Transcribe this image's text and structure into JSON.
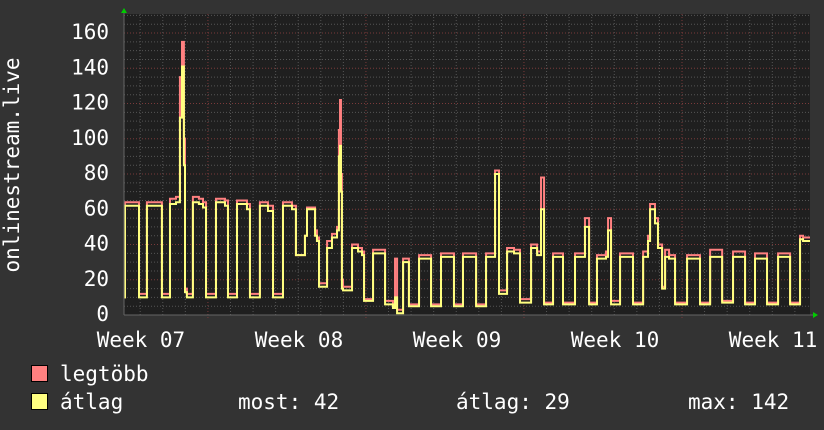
{
  "chart_data": {
    "type": "line",
    "ylabel": "onlinestream.live",
    "xlabel": "",
    "ylim": [
      0,
      170.8
    ],
    "xlim": [
      6.956,
      11.297
    ],
    "x_unit": "ISO week",
    "y_ticks": [
      0,
      20,
      40,
      60,
      80,
      100,
      120,
      140,
      160
    ],
    "y_tick_labels": [
      "0",
      "20",
      "40",
      "60",
      "80",
      "100",
      "120",
      "140",
      "160"
    ],
    "x_ticks": [
      7,
      8,
      9,
      10,
      11
    ],
    "x_tick_labels": [
      "Week 07",
      "Week 08",
      "Week 09",
      "Week 10",
      "Week 11"
    ],
    "grid": true,
    "render": "step",
    "background": "#1f1f1f",
    "series": [
      {
        "name": "legtöbb",
        "color": "#ff8080",
        "key": "max"
      },
      {
        "name": "átlag",
        "color": "#ffff80",
        "key": "avg"
      }
    ],
    "points": [
      [
        6.956,
        10,
        10
      ],
      [
        6.962,
        64,
        62
      ],
      [
        7.051,
        12,
        10
      ],
      [
        7.101,
        64,
        62
      ],
      [
        7.196,
        12,
        10
      ],
      [
        7.247,
        66,
        63
      ],
      [
        7.285,
        67,
        64
      ],
      [
        7.31,
        135,
        112
      ],
      [
        7.323,
        155,
        141
      ],
      [
        7.335,
        100,
        85
      ],
      [
        7.342,
        15,
        13
      ],
      [
        7.354,
        12,
        10
      ],
      [
        7.392,
        67,
        64
      ],
      [
        7.43,
        66,
        63
      ],
      [
        7.456,
        64,
        61
      ],
      [
        7.475,
        12,
        10
      ],
      [
        7.538,
        66,
        64
      ],
      [
        7.595,
        65,
        62
      ],
      [
        7.614,
        12,
        10
      ],
      [
        7.671,
        65,
        63
      ],
      [
        7.734,
        63,
        60
      ],
      [
        7.753,
        12,
        10
      ],
      [
        7.816,
        64,
        62
      ],
      [
        7.867,
        62,
        59
      ],
      [
        7.899,
        12,
        10
      ],
      [
        7.962,
        64,
        62
      ],
      [
        8.019,
        62,
        60
      ],
      [
        8.044,
        34,
        34
      ],
      [
        8.101,
        45,
        45
      ],
      [
        8.114,
        61,
        60
      ],
      [
        8.165,
        48,
        45
      ],
      [
        8.177,
        44,
        42
      ],
      [
        8.19,
        18,
        16
      ],
      [
        8.241,
        42,
        38
      ],
      [
        8.272,
        46,
        44
      ],
      [
        8.304,
        50,
        48
      ],
      [
        8.316,
        105,
        90
      ],
      [
        8.323,
        122,
        96
      ],
      [
        8.329,
        80,
        70
      ],
      [
        8.335,
        20,
        15
      ],
      [
        8.342,
        16,
        14
      ],
      [
        8.399,
        40,
        38
      ],
      [
        8.437,
        38,
        36
      ],
      [
        8.462,
        36,
        34
      ],
      [
        8.475,
        9,
        8
      ],
      [
        8.532,
        37,
        35
      ],
      [
        8.608,
        8,
        6
      ],
      [
        8.658,
        5,
        4
      ],
      [
        8.671,
        32,
        10
      ],
      [
        8.684,
        3,
        1
      ],
      [
        8.722,
        32,
        30
      ],
      [
        8.759,
        6,
        5
      ],
      [
        8.823,
        34,
        32
      ],
      [
        8.899,
        6,
        5
      ],
      [
        8.962,
        35,
        33
      ],
      [
        9.044,
        6,
        5
      ],
      [
        9.101,
        35,
        33
      ],
      [
        9.184,
        6,
        5
      ],
      [
        9.247,
        35,
        33
      ],
      [
        9.304,
        82,
        80
      ],
      [
        9.329,
        14,
        12
      ],
      [
        9.38,
        38,
        36
      ],
      [
        9.424,
        37,
        35
      ],
      [
        9.462,
        9,
        7
      ],
      [
        9.532,
        40,
        38
      ],
      [
        9.57,
        36,
        34
      ],
      [
        9.595,
        78,
        60
      ],
      [
        9.614,
        7,
        6
      ],
      [
        9.671,
        35,
        33
      ],
      [
        9.734,
        7,
        6
      ],
      [
        9.81,
        35,
        33
      ],
      [
        9.873,
        55,
        50
      ],
      [
        9.899,
        7,
        6
      ],
      [
        9.949,
        34,
        32
      ],
      [
        10.006,
        36,
        33
      ],
      [
        10.019,
        55,
        48
      ],
      [
        10.038,
        8,
        6
      ],
      [
        10.095,
        35,
        33
      ],
      [
        10.177,
        7,
        6
      ],
      [
        10.241,
        36,
        33
      ],
      [
        10.272,
        45,
        42
      ],
      [
        10.285,
        63,
        60
      ],
      [
        10.316,
        55,
        52
      ],
      [
        10.335,
        40,
        38
      ],
      [
        10.361,
        16,
        15
      ],
      [
        10.38,
        37,
        33
      ],
      [
        10.405,
        34,
        32
      ],
      [
        10.443,
        7,
        6
      ],
      [
        10.519,
        34,
        32
      ],
      [
        10.601,
        7,
        6
      ],
      [
        10.665,
        37,
        33
      ],
      [
        10.741,
        8,
        7
      ],
      [
        10.81,
        36,
        33
      ],
      [
        10.886,
        7,
        6
      ],
      [
        10.949,
        35,
        32
      ],
      [
        11.025,
        7,
        6
      ],
      [
        11.095,
        35,
        33
      ],
      [
        11.171,
        7,
        6
      ],
      [
        11.234,
        45,
        43
      ],
      [
        11.253,
        44,
        42
      ],
      [
        11.297,
        44,
        42
      ]
    ]
  },
  "legend": {
    "items": [
      {
        "label": "legtöbb",
        "color": "#ff8080"
      },
      {
        "label": "átlag",
        "color": "#ffff80"
      }
    ],
    "stats": {
      "current": "most: 42",
      "average": "átlag: 29",
      "maximum": "max: 142"
    }
  }
}
